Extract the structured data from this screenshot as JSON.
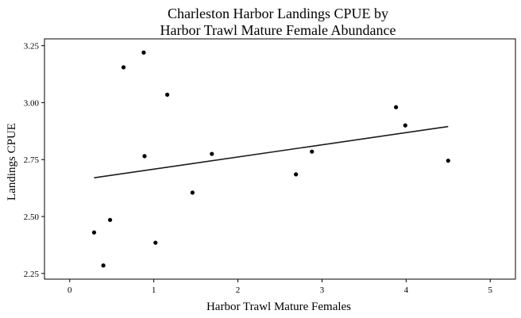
{
  "chart_data": {
    "type": "scatter",
    "title": [
      "Charleston Harbor Landings CPUE by",
      "Harbor Trawl Mature Female Abundance"
    ],
    "xlabel": "Harbor Trawl Mature Females",
    "ylabel": "Landings CPUE",
    "xlim": [
      -0.3,
      5.3
    ],
    "ylim": [
      2.225,
      3.28
    ],
    "xticks": [
      0,
      1,
      2,
      3,
      4,
      5
    ],
    "xtick_labels": [
      "0",
      "1",
      "2",
      "3",
      "4",
      "5"
    ],
    "yticks": [
      2.25,
      2.5,
      2.75,
      3.0,
      3.25
    ],
    "ytick_labels": [
      "2.25",
      "2.50",
      "2.75",
      "3.00",
      "3.25"
    ],
    "grid": false,
    "legend": "none",
    "points": [
      {
        "x": 0.29,
        "y": 2.43
      },
      {
        "x": 0.4,
        "y": 2.285
      },
      {
        "x": 0.48,
        "y": 2.485
      },
      {
        "x": 0.64,
        "y": 3.155
      },
      {
        "x": 0.88,
        "y": 3.22
      },
      {
        "x": 0.89,
        "y": 2.765
      },
      {
        "x": 1.02,
        "y": 2.385
      },
      {
        "x": 1.16,
        "y": 3.035
      },
      {
        "x": 1.46,
        "y": 2.605
      },
      {
        "x": 1.69,
        "y": 2.775
      },
      {
        "x": 2.69,
        "y": 2.685
      },
      {
        "x": 2.88,
        "y": 2.785
      },
      {
        "x": 3.88,
        "y": 2.98
      },
      {
        "x": 3.99,
        "y": 2.9
      },
      {
        "x": 4.5,
        "y": 2.745
      }
    ],
    "trend_line": {
      "x": [
        0.29,
        4.5
      ],
      "y": [
        2.67,
        2.895
      ]
    },
    "colors": {
      "points": "#000000",
      "line": "#1a1a1a",
      "axis": "#000000"
    }
  }
}
